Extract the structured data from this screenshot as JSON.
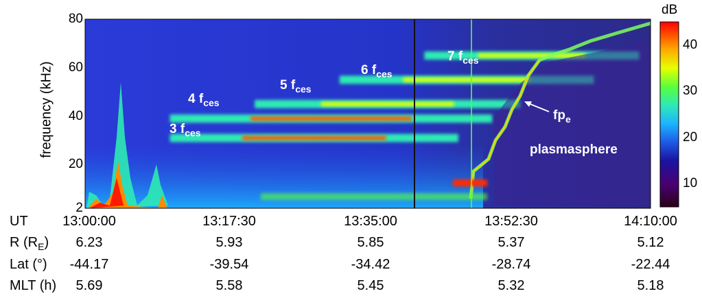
{
  "chart_data": {
    "type": "heatmap",
    "ylabel": "frequency (kHz)",
    "y_ticks": [
      "80",
      "60",
      "40",
      "20",
      "2"
    ],
    "ylim": [
      2,
      80
    ],
    "x_ticks": [
      "13:00:00",
      "13:17:30",
      "13:35:00",
      "13:52:30",
      "14:10:00"
    ],
    "colorbar": {
      "label": "dB",
      "ticks": [
        "40",
        "30",
        "20",
        "10"
      ],
      "range": [
        5,
        45
      ],
      "colormap": [
        "#2a0018",
        "#4a0070",
        "#1a14a0",
        "#1e5ae6",
        "#1cb4ff",
        "#2eeab4",
        "#5aff3a",
        "#e6ff00",
        "#ffaa00",
        "#ff2a00",
        "#ff0000"
      ]
    },
    "annotations": [
      {
        "id": "3fces",
        "main": "3 f",
        "sub": "ces"
      },
      {
        "id": "4fces",
        "main": "4 f",
        "sub": "ces"
      },
      {
        "id": "5fces",
        "main": "5 f",
        "sub": "ces"
      },
      {
        "id": "6fces",
        "main": "6 f",
        "sub": "ces"
      },
      {
        "id": "7fces",
        "main": "7 f",
        "sub": "ces"
      },
      {
        "id": "fpe",
        "main": "fp",
        "sub": "e"
      },
      {
        "id": "plasmasphere",
        "main": "plasmasphere",
        "sub": ""
      }
    ],
    "table": {
      "rows": [
        {
          "label": "UT",
          "values": [
            "13:00:00",
            "13:17:30",
            "13:35:00",
            "13:52:30",
            "14:10:00"
          ]
        },
        {
          "label": "R (R",
          "label_sub": "E",
          "label_end": ")",
          "values": [
            "6.23",
            "5.93",
            "5.85",
            "5.37",
            "5.12"
          ]
        },
        {
          "label": "Lat (°)",
          "values": [
            "-44.17",
            "-39.54",
            "-34.42",
            "-28.74",
            "-22.44"
          ]
        },
        {
          "label": "MLT (h)",
          "values": [
            "5.69",
            "5.58",
            "5.45",
            "5.32",
            "5.18"
          ]
        }
      ]
    },
    "bands": [
      {
        "harmonic": 3,
        "x": [
          0.15,
          0.66
        ],
        "y": 31
      },
      {
        "harmonic": 4,
        "x": [
          0.15,
          0.72
        ],
        "y": 39
      },
      {
        "harmonic": 5,
        "x": [
          0.3,
          0.77
        ],
        "y": 45
      },
      {
        "harmonic": 6,
        "x": [
          0.45,
          0.9
        ],
        "y": 55
      },
      {
        "harmonic": 7,
        "x": [
          0.6,
          0.98
        ],
        "y": 65
      }
    ]
  }
}
